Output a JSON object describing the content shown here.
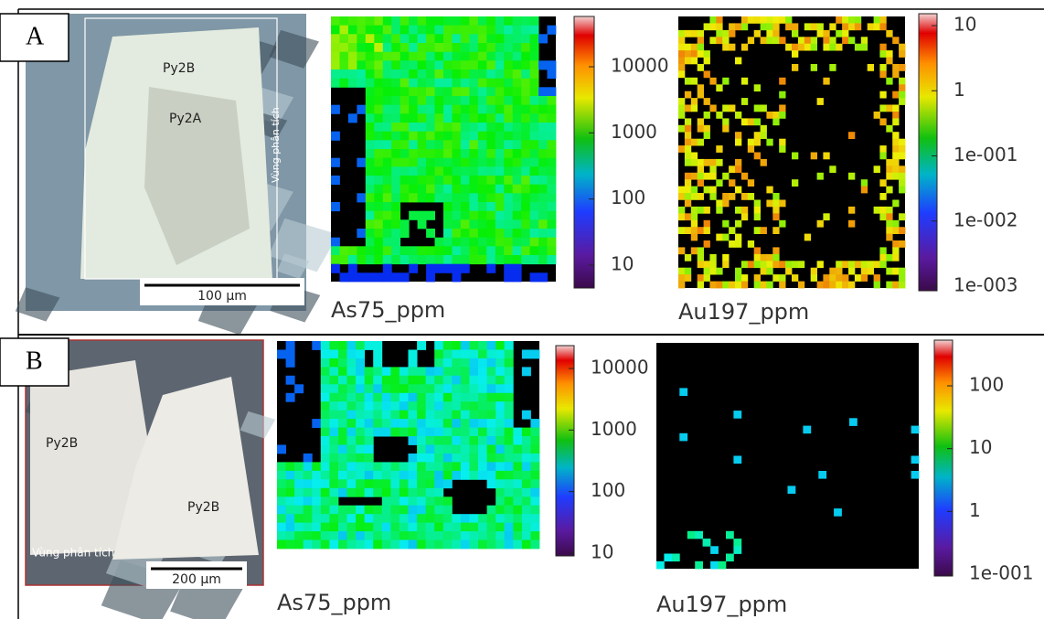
{
  "panels": [
    {
      "label": "A",
      "image": {
        "labels": [
          "Py2B",
          "Py2A",
          "Vùng phân tích"
        ],
        "scale_bar": "100 µm"
      },
      "maps": [
        {
          "title": "As75_ppm",
          "colorbar_ticks": [
            "10000",
            "1000",
            "100",
            "10"
          ]
        },
        {
          "title": "Au197_ppm",
          "colorbar_ticks": [
            "10",
            "1",
            "1e-001",
            "1e-002",
            "1e-003"
          ]
        }
      ]
    },
    {
      "label": "B",
      "image": {
        "labels": [
          "Py2B",
          "Py2B",
          "Vùng phân tích"
        ],
        "scale_bar": "200 µm"
      },
      "maps": [
        {
          "title": "As75_ppm",
          "colorbar_ticks": [
            "10000",
            "1000",
            "100",
            "10"
          ]
        },
        {
          "title": "Au197_ppm",
          "colorbar_ticks": [
            "100",
            "10",
            "1",
            "1e-001"
          ]
        }
      ]
    }
  ]
}
